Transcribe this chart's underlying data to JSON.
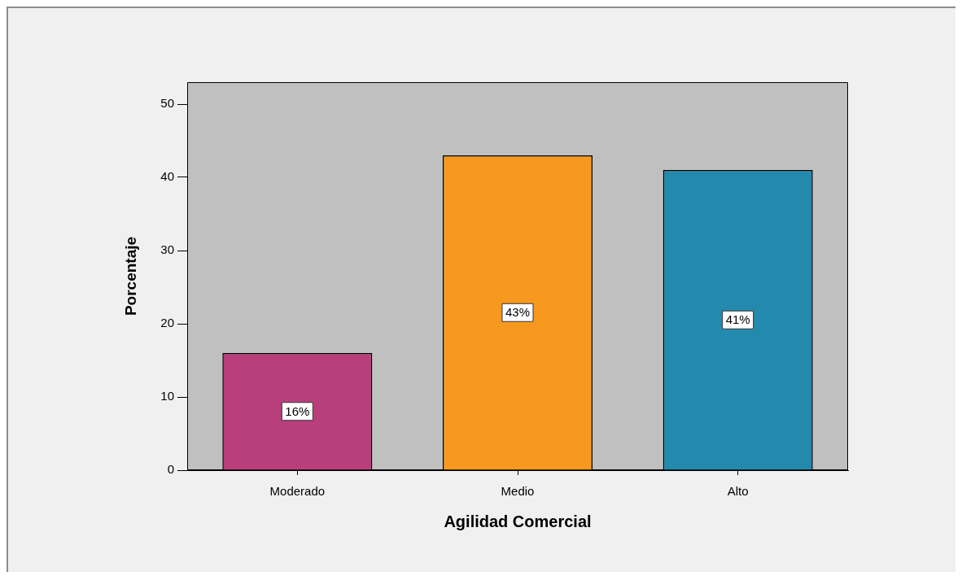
{
  "chart_data": {
    "type": "bar",
    "xlabel": "Agilidad Comercial",
    "ylabel": "Porcentaje",
    "categories": [
      "Moderado",
      "Medio",
      "Alto"
    ],
    "values": [
      16,
      43,
      41
    ],
    "colors": [
      "#b93e7c",
      "#f7981f",
      "#248aad"
    ],
    "value_labels": [
      "16%",
      "43%",
      "41%"
    ],
    "ylim": [
      0,
      53
    ],
    "yticks": [
      0,
      10,
      20,
      30,
      40,
      50
    ]
  }
}
